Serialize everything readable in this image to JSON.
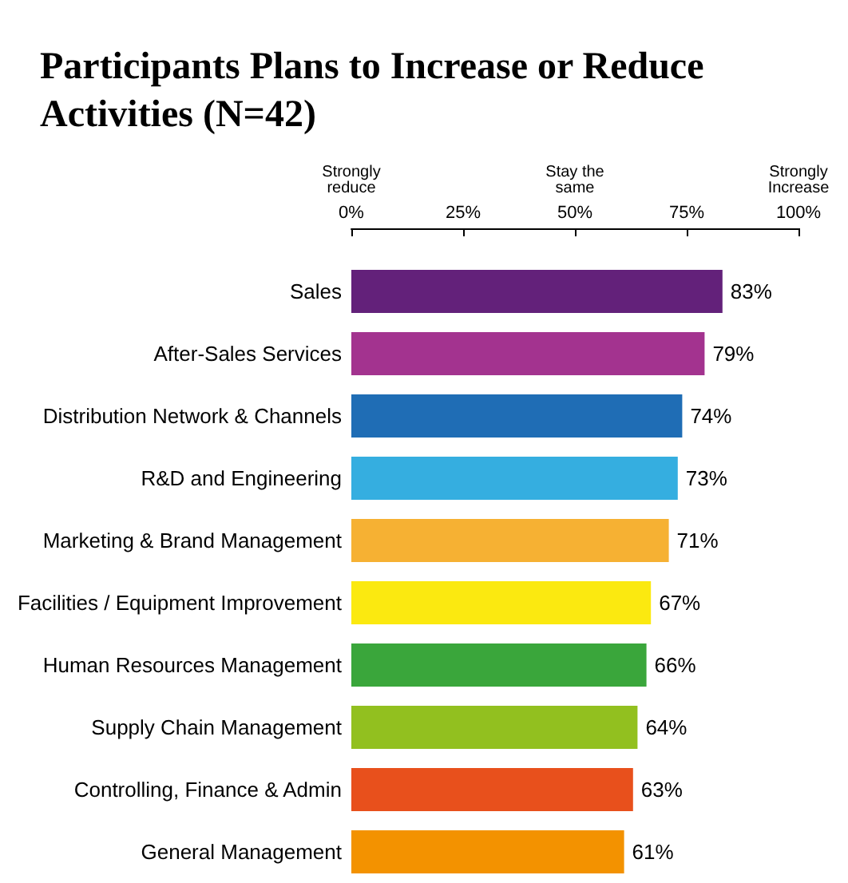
{
  "chart_data": {
    "type": "bar",
    "orientation": "horizontal",
    "title": "Participants Plans to Increase or Reduce Activities (N=42)",
    "categories": [
      "Sales",
      "After-Sales Services",
      "Distribution Network & Channels",
      "R&D and Engineering",
      "Marketing & Brand Management",
      "Facilities / Equipment Improvement",
      "Human Resources Management",
      "Supply Chain Management",
      "Controlling, Finance & Admin",
      "General Management"
    ],
    "values": [
      83,
      79,
      74,
      73,
      71,
      67,
      66,
      64,
      63,
      61
    ],
    "colors": [
      "#63217a",
      "#a3338f",
      "#1f6db5",
      "#35aee0",
      "#f6b133",
      "#fbe910",
      "#3aa63b",
      "#92c01f",
      "#e8501c",
      "#f39200"
    ],
    "xlim": [
      0,
      100
    ],
    "xticks": [
      {
        "value": 0,
        "label": "0%"
      },
      {
        "value": 25,
        "label": "25%"
      },
      {
        "value": 50,
        "label": "50%"
      },
      {
        "value": 75,
        "label": "75%"
      },
      {
        "value": 100,
        "label": "100%"
      }
    ],
    "annotations": [
      "Strongly\nreduce",
      "Stay the\nsame",
      "Strongly\nIncrease"
    ],
    "value_labels": [
      "83%",
      "79%",
      "74%",
      "73%",
      "71%",
      "67%",
      "66%",
      "64%",
      "63%",
      "61%"
    ]
  }
}
